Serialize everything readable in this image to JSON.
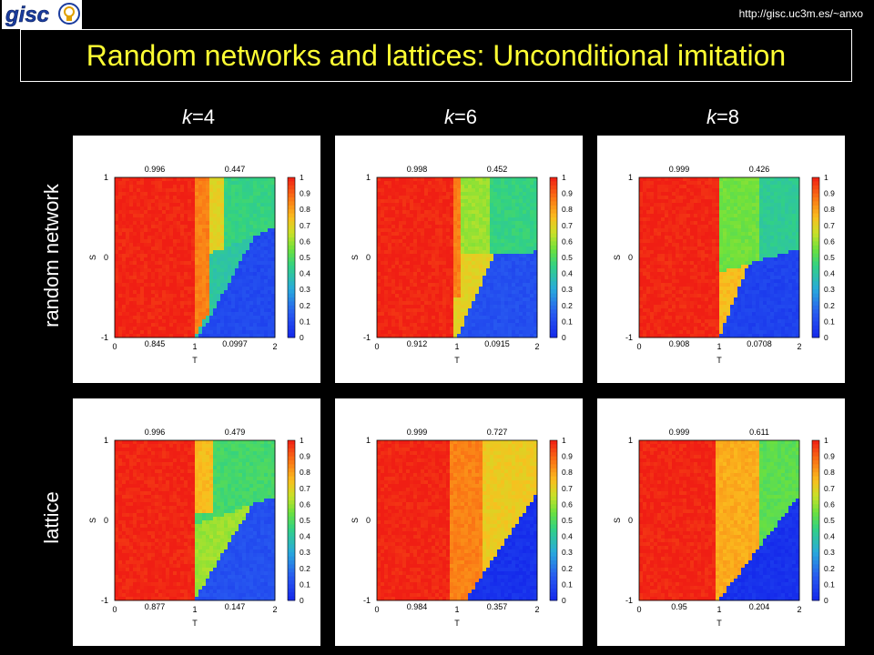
{
  "header": {
    "url": "http://gisc.uc3m.es/~anxo",
    "title": "Random networks and lattices: Unconditional imitation",
    "logo_text": "gisc"
  },
  "columns": [
    {
      "italic": "k",
      "rest": "=4"
    },
    {
      "italic": "k",
      "rest": "=6"
    },
    {
      "italic": "k",
      "rest": "=8"
    }
  ],
  "rows": [
    "random network",
    "lattice"
  ],
  "colors": {
    "title": "#ffff33",
    "background": "#000000"
  },
  "chart_data": [
    {
      "type": "heatmap",
      "row": "random network",
      "column": "k=4",
      "xlabel": "T",
      "ylabel": "S",
      "xticks": [
        "0",
        "1",
        "2"
      ],
      "yticks": [
        "-1",
        "0",
        "1"
      ],
      "xlim": [
        0,
        2
      ],
      "ylim": [
        -1,
        1
      ],
      "colorbar_ticks": [
        "1",
        "0.9",
        "0.8",
        "0.7",
        "0.6",
        "0.5",
        "0.4",
        "0.3",
        "0.2",
        "0.1",
        "0"
      ],
      "colorbar_range": [
        0,
        1
      ],
      "annotations": {
        "top_left": "0.996",
        "top_right": "0.447",
        "bottom_left": "0.845",
        "bottom_right": "0.0997"
      }
    },
    {
      "type": "heatmap",
      "row": "random network",
      "column": "k=6",
      "xlabel": "T",
      "ylabel": "S",
      "xticks": [
        "0",
        "1",
        "2"
      ],
      "yticks": [
        "-1",
        "0",
        "1"
      ],
      "xlim": [
        0,
        2
      ],
      "ylim": [
        -1,
        1
      ],
      "colorbar_ticks": [
        "1",
        "0.9",
        "0.8",
        "0.7",
        "0.6",
        "0.5",
        "0.4",
        "0.3",
        "0.2",
        "0.1",
        "0"
      ],
      "colorbar_range": [
        0,
        1
      ],
      "annotations": {
        "top_left": "0.998",
        "top_right": "0.452",
        "bottom_left": "0.912",
        "bottom_right": "0.0915"
      }
    },
    {
      "type": "heatmap",
      "row": "random network",
      "column": "k=8",
      "xlabel": "T",
      "ylabel": "S",
      "xticks": [
        "0",
        "1",
        "2"
      ],
      "yticks": [
        "-1",
        "0",
        "1"
      ],
      "xlim": [
        0,
        2
      ],
      "ylim": [
        -1,
        1
      ],
      "colorbar_ticks": [
        "1",
        "0.9",
        "0.8",
        "0.7",
        "0.6",
        "0.5",
        "0.4",
        "0.3",
        "0.2",
        "0.1",
        "0"
      ],
      "colorbar_range": [
        0,
        1
      ],
      "annotations": {
        "top_left": "0.999",
        "top_right": "0.426",
        "bottom_left": "0.908",
        "bottom_right": "0.0708"
      }
    },
    {
      "type": "heatmap",
      "row": "lattice",
      "column": "k=4",
      "xlabel": "T",
      "ylabel": "S",
      "xticks": [
        "0",
        "1",
        "2"
      ],
      "yticks": [
        "-1",
        "0",
        "1"
      ],
      "xlim": [
        0,
        2
      ],
      "ylim": [
        -1,
        1
      ],
      "colorbar_ticks": [
        "1",
        "0.9",
        "0.8",
        "0.7",
        "0.6",
        "0.5",
        "0.4",
        "0.3",
        "0.2",
        "0.1",
        "0"
      ],
      "colorbar_range": [
        0,
        1
      ],
      "annotations": {
        "top_left": "0.996",
        "top_right": "0.479",
        "bottom_left": "0.877",
        "bottom_right": "0.147"
      }
    },
    {
      "type": "heatmap",
      "row": "lattice",
      "column": "k=6",
      "xlabel": "T",
      "ylabel": "S",
      "xticks": [
        "0",
        "1",
        "2"
      ],
      "yticks": [
        "-1",
        "0",
        "1"
      ],
      "xlim": [
        0,
        2
      ],
      "ylim": [
        -1,
        1
      ],
      "colorbar_ticks": [
        "1",
        "0.9",
        "0.8",
        "0.7",
        "0.6",
        "0.5",
        "0.4",
        "0.3",
        "0.2",
        "0.1",
        "0"
      ],
      "colorbar_range": [
        0,
        1
      ],
      "annotations": {
        "top_left": "0.999",
        "top_right": "0.727",
        "bottom_left": "0.984",
        "bottom_right": "0.357"
      }
    },
    {
      "type": "heatmap",
      "row": "lattice",
      "column": "k=8",
      "xlabel": "T",
      "ylabel": "S",
      "xticks": [
        "0",
        "1",
        "2"
      ],
      "yticks": [
        "-1",
        "0",
        "1"
      ],
      "xlim": [
        0,
        2
      ],
      "ylim": [
        -1,
        1
      ],
      "colorbar_ticks": [
        "1",
        "0.9",
        "0.8",
        "0.7",
        "0.6",
        "0.5",
        "0.4",
        "0.3",
        "0.2",
        "0.1",
        "0"
      ],
      "colorbar_range": [
        0,
        1
      ],
      "annotations": {
        "top_left": "0.999",
        "top_right": "0.611",
        "bottom_left": "0.95",
        "bottom_right": "0.204"
      }
    }
  ]
}
